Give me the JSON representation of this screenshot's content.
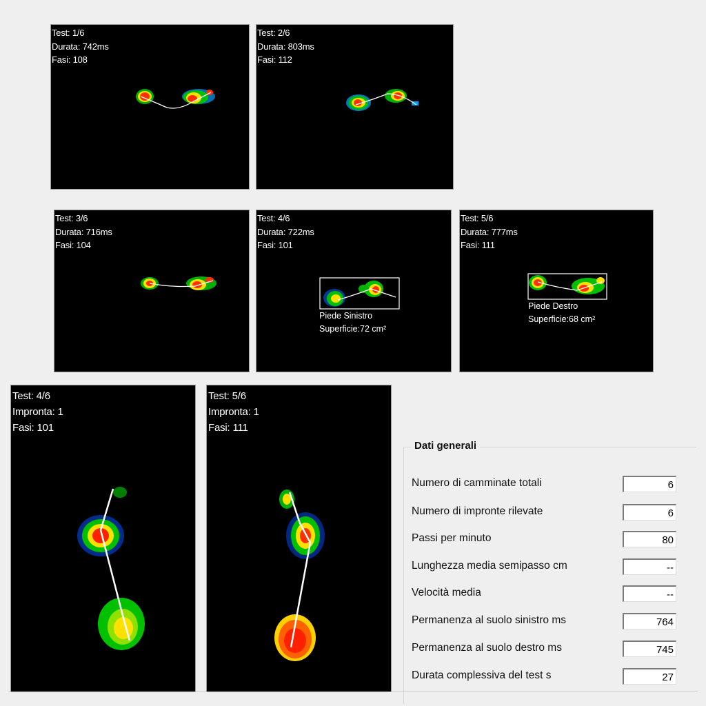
{
  "tests": [
    {
      "test": "Test: 1/6",
      "durata": "Durata: 742ms",
      "fasi": "Fasi: 108"
    },
    {
      "test": "Test: 2/6",
      "durata": "Durata: 803ms",
      "fasi": "Fasi: 112"
    },
    {
      "test": "Test: 3/6",
      "durata": "Durata: 716ms",
      "fasi": "Fasi: 104"
    },
    {
      "test": "Test: 4/6",
      "durata": "Durata: 722ms",
      "fasi": "Fasi: 101",
      "roi_name": "Piede Sinistro",
      "roi_area": "Superficie:72 cm²"
    },
    {
      "test": "Test: 5/6",
      "durata": "Durata: 777ms",
      "fasi": "Fasi: 111",
      "roi_name": "Piede Destro",
      "roi_area": "Superficie:68 cm²"
    }
  ],
  "footprints": [
    {
      "test": "Test: 4/6",
      "impronta": "Impronta: 1",
      "fasi": "Fasi: 101"
    },
    {
      "test": "Test: 5/6",
      "impronta": "Impronta: 1",
      "fasi": "Fasi: 111"
    }
  ],
  "general": {
    "title": "Dati generali",
    "rows": [
      {
        "label": "Numero di camminate totali",
        "value": "6"
      },
      {
        "label": "Numero di impronte rilevate",
        "value": "6"
      },
      {
        "label": "Passi per minuto",
        "value": "80"
      },
      {
        "label": "Lunghezza media semipasso cm",
        "value": "--"
      },
      {
        "label": "Velocità media",
        "value": "--"
      },
      {
        "label": "Permanenza al suolo sinistro ms",
        "value": "764"
      },
      {
        "label": "Permanenza al suolo destro ms",
        "value": "745"
      },
      {
        "label": "Durata complessiva del test s",
        "value": "27"
      }
    ]
  }
}
